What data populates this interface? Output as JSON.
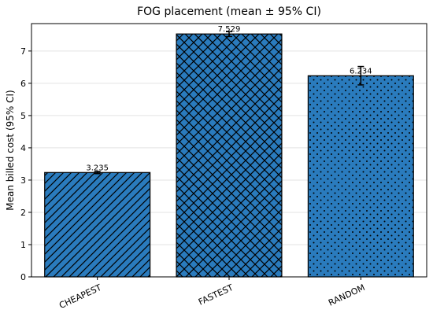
{
  "chart_data": {
    "type": "bar",
    "title": "FOG placement (mean ± 95% CI)",
    "xlabel": "",
    "ylabel": "Mean billed cost (95% CI)",
    "categories": [
      "CHEAPEST",
      "FASTEST",
      "RANDOM"
    ],
    "values": [
      3.235,
      7.529,
      6.234
    ],
    "value_labels": [
      "3.235",
      "7.529",
      "6.234"
    ],
    "ci_low": [
      3.2,
      7.45,
      5.95
    ],
    "ci_high": [
      3.27,
      7.6,
      6.52
    ],
    "ylim": [
      0,
      7.85
    ],
    "yticks": [
      0,
      1,
      2,
      3,
      4,
      5,
      6,
      7
    ],
    "patterns": [
      "diagonal",
      "crosshatch",
      "dots"
    ],
    "bar_color": "#2a7bbd",
    "grid": true
  }
}
